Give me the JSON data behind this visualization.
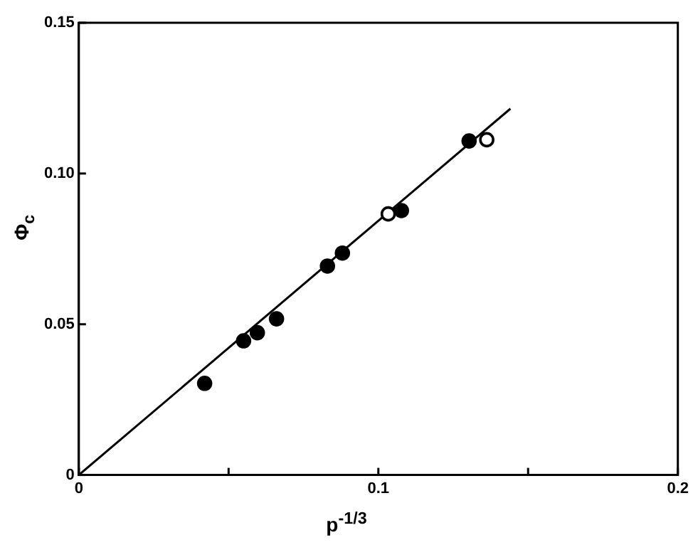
{
  "chart_data": {
    "type": "scatter",
    "xlabel": "p$^{-1/3}$",
    "ylabel": "Φ$_{c}$",
    "xlim": [
      0,
      0.2
    ],
    "xticks": [
      0,
      {
        "value": 0.05,
        "label": null
      },
      0.1,
      {
        "value": 0.15,
        "label": null
      },
      0.2
    ],
    "ylim": [
      0,
      0.15
    ],
    "yticks": [
      0,
      0.05,
      {
        "value": 0.1,
        "label": "0.10"
      },
      0.15
    ],
    "grid": false,
    "legend": false,
    "marker": "circle",
    "series": [
      {
        "color": "#000000",
        "x": [
          0.042,
          0.055,
          0.0596,
          0.066,
          0.083,
          0.088,
          0.1077,
          0.1303
        ],
        "values": [
          0.0304,
          0.0445,
          0.0472,
          0.0518,
          0.0693,
          0.0736,
          0.0877,
          0.1108
        ]
      },
      {
        "color": "#ffffff",
        "x": [
          0.1033,
          0.1362
        ],
        "values": [
          0.0866,
          0.1112
        ]
      },
      {
        "type": "line",
        "color": "#000000",
        "x": [
          0,
          0.1441
        ],
        "values": [
          0,
          0.1215
        ],
        "marker": "none",
        "line_style": "solid"
      }
    ]
  }
}
